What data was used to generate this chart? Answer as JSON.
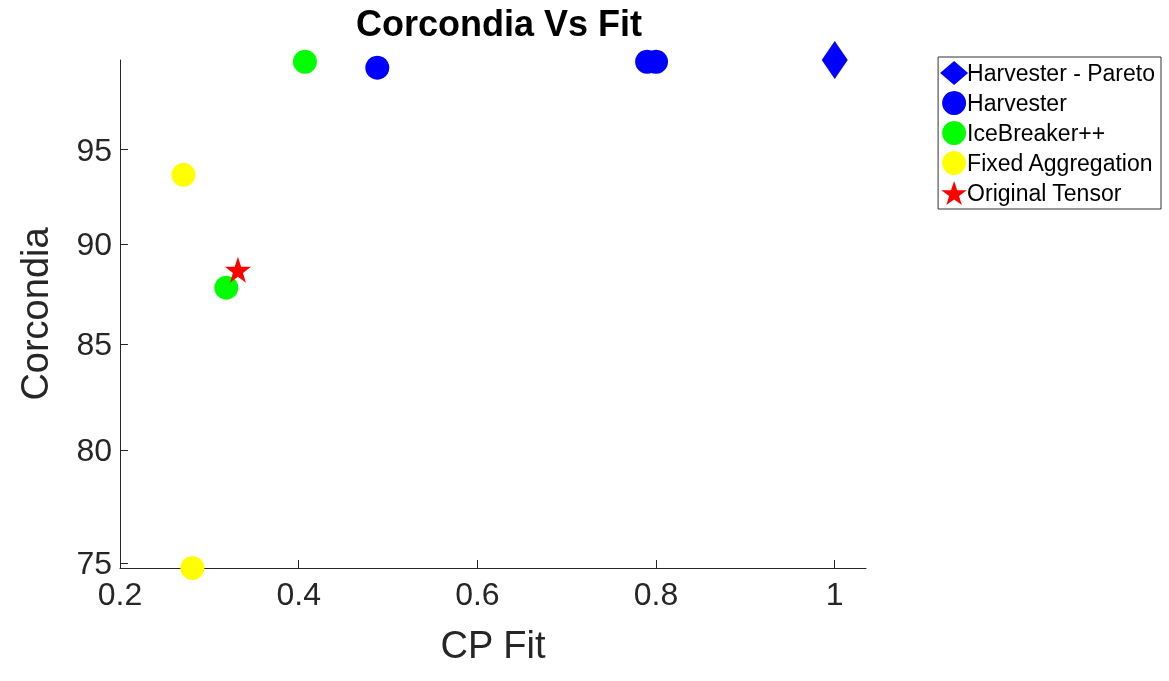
{
  "chart_data": {
    "type": "scatter",
    "title": "Corcondia Vs Fit",
    "xlabel": "CP Fit",
    "ylabel": "Corcondia",
    "log": "y",
    "xlim": [
      0.2,
      1.035
    ],
    "xticks": [
      {
        "value": 0.2,
        "label": "0.2"
      },
      {
        "value": 0.4,
        "label": "0.4"
      },
      {
        "value": 0.6,
        "label": "0.6"
      },
      {
        "value": 0.8,
        "label": "0.8"
      },
      1
    ],
    "ylim": [
      74.8,
      100
    ],
    "yticks": [
      75,
      80,
      85,
      90,
      95
    ],
    "grid": false,
    "legend": "top right",
    "series": [
      {
        "name": "Harvester - Pareto",
        "color": "#0000ff",
        "marker": "diamond",
        "x": [
          1.0
        ],
        "values": [
          100.0
        ]
      },
      {
        "name": "Harvester",
        "color": "#0000ff",
        "marker": "circle",
        "x": [
          0.488,
          0.79,
          0.8
        ],
        "values": [
          99.56,
          99.9,
          99.9
        ]
      },
      {
        "name": "IceBreaker++",
        "color": "#00ff00",
        "marker": "circle",
        "x": [
          0.407,
          0.319
        ],
        "values": [
          99.9,
          87.8
        ]
      },
      {
        "name": "Fixed Aggregation",
        "color": "#ffff00",
        "marker": "circle",
        "x": [
          0.271,
          0.281
        ],
        "values": [
          93.65,
          74.8
        ]
      },
      {
        "name": "Original Tensor",
        "color": "#ff0000",
        "marker": "star",
        "x": [
          0.332
        ],
        "values": [
          88.7
        ]
      }
    ]
  }
}
